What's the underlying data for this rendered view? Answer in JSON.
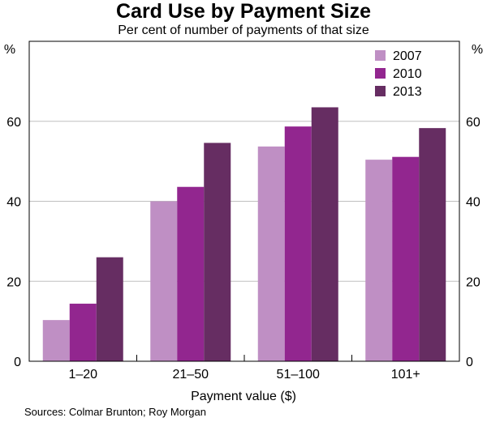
{
  "chart_data": {
    "type": "bar",
    "title": "Card Use by Payment Size",
    "subtitle": "Per cent of number of payments of that size",
    "xlabel": "Payment value ($)",
    "ylabel_left": "%",
    "ylabel_right": "%",
    "source": "Sources: Colmar Brunton; Roy Morgan",
    "categories": [
      "1–20",
      "21–50",
      "51–100",
      "101+"
    ],
    "series": [
      {
        "name": "2007",
        "color": "#bf8fc4",
        "values": [
          10.3,
          40.0,
          53.7,
          50.4
        ]
      },
      {
        "name": "2010",
        "color": "#92268f",
        "values": [
          14.4,
          43.6,
          58.7,
          51.1
        ]
      },
      {
        "name": "2013",
        "color": "#662d62",
        "values": [
          26.0,
          54.6,
          63.5,
          58.3
        ]
      }
    ],
    "ylim": [
      0,
      80
    ],
    "yticks": [
      0,
      20,
      40,
      60
    ],
    "grid": true,
    "legend_position": "top-right"
  }
}
